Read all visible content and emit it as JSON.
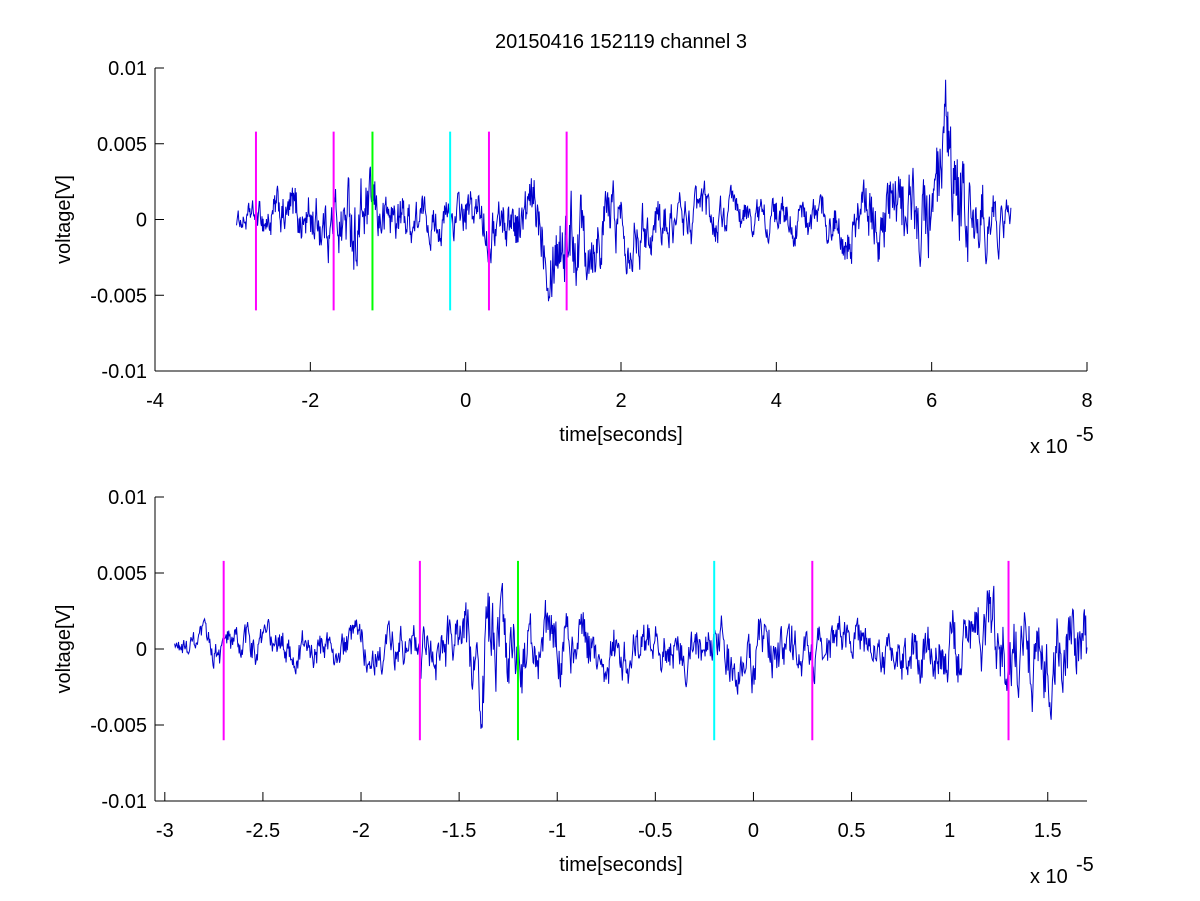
{
  "chart_data": [
    {
      "type": "line",
      "title": "20150416 152119 channel 3",
      "xlabel": "time[seconds]",
      "ylabel": "voltage[V]",
      "x_exponent_label": "x 10",
      "x_exponent_power": "-5",
      "xlim": [
        -4,
        8
      ],
      "ylim": [
        -0.01,
        0.01
      ],
      "xticks": [
        -4,
        -2,
        0,
        2,
        4,
        6,
        8
      ],
      "xtick_labels": [
        "-4",
        "-2",
        "0",
        "2",
        "4",
        "6",
        "8"
      ],
      "yticks": [
        -0.01,
        -0.005,
        0,
        0.005,
        0.01
      ],
      "ytick_labels": [
        "-0.01",
        "-0.005",
        "0",
        "0.005",
        "0.01"
      ],
      "grid": false,
      "series": [
        {
          "color": "#0000cc",
          "x_range": [
            -2.95,
            7.02
          ],
          "envelope": [
            [
              -2.95,
              0.0006
            ],
            [
              -2.5,
              0.0014
            ],
            [
              -2.0,
              0.0018
            ],
            [
              -1.6,
              0.0022
            ],
            [
              -1.4,
              0.0032
            ],
            [
              -1.2,
              0.002
            ],
            [
              -0.8,
              0.0016
            ],
            [
              -0.4,
              0.0012
            ],
            [
              0.0,
              0.0016
            ],
            [
              0.5,
              0.0018
            ],
            [
              0.9,
              0.0022
            ],
            [
              1.1,
              0.0028
            ],
            [
              1.4,
              0.0032
            ],
            [
              1.8,
              0.0022
            ],
            [
              2.5,
              0.0016
            ],
            [
              3.5,
              0.0012
            ],
            [
              4.5,
              0.0012
            ],
            [
              5.0,
              0.0018
            ],
            [
              5.5,
              0.0026
            ],
            [
              6.0,
              0.0032
            ],
            [
              6.25,
              0.0048
            ],
            [
              6.45,
              0.0034
            ],
            [
              6.8,
              0.0018
            ],
            [
              7.02,
              0.0012
            ]
          ]
        }
      ],
      "markers": [
        {
          "x": -2.7,
          "color": "#ff00ff",
          "y_range": [
            -0.006,
            0.0058
          ]
        },
        {
          "x": -1.7,
          "color": "#ff00ff",
          "y_range": [
            -0.006,
            0.0058
          ]
        },
        {
          "x": -1.2,
          "color": "#00ff00",
          "y_range": [
            -0.006,
            0.0058
          ]
        },
        {
          "x": -0.2,
          "color": "#00ffff",
          "y_range": [
            -0.006,
            0.0058
          ]
        },
        {
          "x": 0.3,
          "color": "#ff00ff",
          "y_range": [
            -0.006,
            0.0058
          ]
        },
        {
          "x": 1.3,
          "color": "#ff00ff",
          "y_range": [
            -0.006,
            0.0058
          ]
        }
      ]
    },
    {
      "type": "line",
      "title": "",
      "xlabel": "time[seconds]",
      "ylabel": "voltage[V]",
      "x_exponent_label": "x 10",
      "x_exponent_power": "-5",
      "xlim": [
        -3.05,
        1.7
      ],
      "ylim": [
        -0.01,
        0.01
      ],
      "xticks": [
        -3,
        -2.5,
        -2,
        -1.5,
        -1,
        -0.5,
        0,
        0.5,
        1,
        1.5
      ],
      "xtick_labels": [
        "-3",
        "-2.5",
        "-2",
        "-1.5",
        "-1",
        "-0.5",
        "0",
        "0.5",
        "1",
        "1.5"
      ],
      "yticks": [
        -0.01,
        -0.005,
        0,
        0.005,
        0.01
      ],
      "ytick_labels": [
        "-0.01",
        "-0.005",
        "0",
        "0.005",
        "0.01"
      ],
      "grid": false,
      "series": [
        {
          "color": "#0000cc",
          "x_range": [
            -2.95,
            1.7
          ],
          "envelope": [
            [
              -2.95,
              0.0006
            ],
            [
              -2.7,
              0.0012
            ],
            [
              -2.4,
              0.0012
            ],
            [
              -2.0,
              0.0012
            ],
            [
              -1.7,
              0.0016
            ],
            [
              -1.5,
              0.002
            ],
            [
              -1.38,
              0.0036
            ],
            [
              -1.2,
              0.0024
            ],
            [
              -1.0,
              0.002
            ],
            [
              -0.7,
              0.0018
            ],
            [
              -0.4,
              0.0014
            ],
            [
              -0.2,
              0.0016
            ],
            [
              0.0,
              0.0022
            ],
            [
              0.3,
              0.0016
            ],
            [
              0.6,
              0.0014
            ],
            [
              0.9,
              0.002
            ],
            [
              1.1,
              0.0024
            ],
            [
              1.3,
              0.003
            ],
            [
              1.5,
              0.003
            ],
            [
              1.7,
              0.0024
            ]
          ]
        }
      ],
      "markers": [
        {
          "x": -2.7,
          "color": "#ff00ff",
          "y_range": [
            -0.006,
            0.0058
          ]
        },
        {
          "x": -1.7,
          "color": "#ff00ff",
          "y_range": [
            -0.006,
            0.0058
          ]
        },
        {
          "x": -1.2,
          "color": "#00ff00",
          "y_range": [
            -0.006,
            0.0058
          ]
        },
        {
          "x": -0.2,
          "color": "#00ffff",
          "y_range": [
            -0.006,
            0.0058
          ]
        },
        {
          "x": 0.3,
          "color": "#ff00ff",
          "y_range": [
            -0.006,
            0.0058
          ]
        },
        {
          "x": 1.3,
          "color": "#ff00ff",
          "y_range": [
            -0.006,
            0.0058
          ]
        }
      ]
    }
  ]
}
